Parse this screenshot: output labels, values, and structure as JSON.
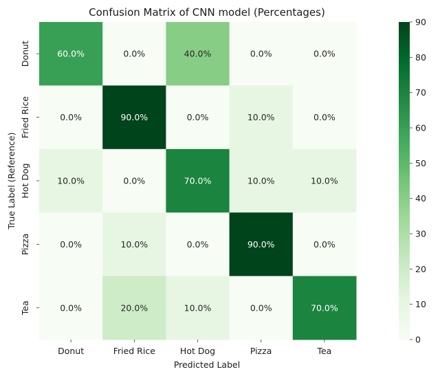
{
  "chart_data": {
    "type": "heatmap",
    "title": "Confusion Matrix of CNN model (Percentages)",
    "xlabel": "Predicted Label",
    "ylabel": "True Label (Reference)",
    "x_categories": [
      "Donut",
      "Fried Rice",
      "Hot Dog",
      "Pizza",
      "Tea"
    ],
    "y_categories": [
      "Donut",
      "Fried Rice",
      "Hot Dog",
      "Pizza",
      "Tea"
    ],
    "values": [
      [
        60,
        0,
        40,
        0,
        0
      ],
      [
        0,
        90,
        0,
        10,
        0
      ],
      [
        10,
        0,
        70,
        10,
        10
      ],
      [
        0,
        10,
        0,
        90,
        0
      ],
      [
        0,
        20,
        10,
        0,
        70
      ]
    ],
    "cell_labels": [
      [
        "60.0%",
        "0.0%",
        "40.0%",
        "0.0%",
        "0.0%"
      ],
      [
        "0.0%",
        "90.0%",
        "0.0%",
        "10.0%",
        "0.0%"
      ],
      [
        "10.0%",
        "0.0%",
        "70.0%",
        "10.0%",
        "10.0%"
      ],
      [
        "0.0%",
        "10.0%",
        "0.0%",
        "90.0%",
        "0.0%"
      ],
      [
        "0.0%",
        "20.0%",
        "10.0%",
        "0.0%",
        "70.0%"
      ]
    ],
    "colorbar": {
      "range": [
        0,
        90
      ],
      "ticks": [
        "0",
        "10",
        "20",
        "30",
        "40",
        "50",
        "60",
        "70",
        "80",
        "90"
      ],
      "colormap": "Greens"
    },
    "grid": false
  }
}
